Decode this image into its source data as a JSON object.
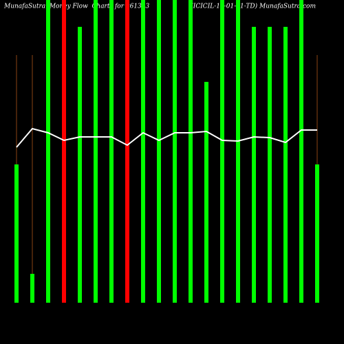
{
  "chart_data": {
    "type": "bar",
    "title": "MunafaSutra  Money Flow  Charts for 961383                     (ICICIL-16-01-31-TD) MunafaSutra.com",
    "bar_values": [
      201,
      42,
      440,
      440,
      401,
      440,
      440,
      440,
      440,
      440,
      440,
      440,
      321,
      440,
      440,
      401,
      401,
      401,
      440,
      201
    ],
    "bar_colors": [
      "#00ff00",
      "#00ff00",
      "#00ff00",
      "#ff0000",
      "#00ff00",
      "#00ff00",
      "#00ff00",
      "#ff0000",
      "#00ff00",
      "#00ff00",
      "#00ff00",
      "#00ff00",
      "#00ff00",
      "#00ff00",
      "#00ff00",
      "#00ff00",
      "#00ff00",
      "#00ff00",
      "#00ff00",
      "#00ff00"
    ],
    "wick_values": [
      360,
      360,
      null,
      null,
      null,
      null,
      null,
      null,
      null,
      null,
      null,
      null,
      null,
      null,
      null,
      null,
      null,
      null,
      null,
      360
    ],
    "wick_color": "#8b4513",
    "line": {
      "color": "#ffffff",
      "values": [
        226,
        253,
        247,
        236,
        241,
        241,
        241,
        229,
        247,
        236,
        247,
        247,
        249,
        236,
        235,
        241,
        240,
        233,
        251,
        251
      ]
    },
    "ylim": [
      0,
      440
    ]
  }
}
